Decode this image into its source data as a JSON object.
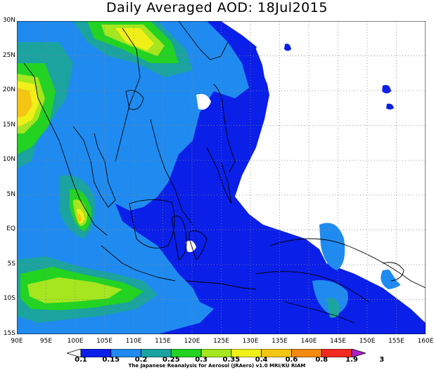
{
  "title": "Daily Averaged AOD: 18Jul2015",
  "lat_labels": [
    "30N",
    "25N",
    "20N",
    "15N",
    "10N",
    "5N",
    "EQ",
    "5S",
    "10S",
    "15S"
  ],
  "lon_labels": [
    "90E",
    "95E",
    "100E",
    "105E",
    "110E",
    "115E",
    "120E",
    "125E",
    "130E",
    "135E",
    "140E",
    "145E",
    "150E",
    "155E",
    "160E"
  ],
  "map_extent": {
    "lon_min": 90,
    "lon_max": 160,
    "lat_min": -15,
    "lat_max": 30
  },
  "grid": {
    "lon_step": 5,
    "lat_step": 5,
    "style": "dotted",
    "visible": true
  },
  "colorbar": {
    "labels": [
      "0.1",
      "0.15",
      "0.2",
      "0.25",
      "0.3",
      "0.35",
      "0.4",
      "0.6",
      "0.8",
      "1.9",
      "3"
    ],
    "colors": [
      "#ffffff",
      "#0a1fe8",
      "#1f8bf0",
      "#1ba3a0",
      "#22d322",
      "#a5e61e",
      "#f0f018",
      "#f5c513",
      "#f58a12",
      "#f02a20",
      "#b01ec8"
    ]
  },
  "credit": "The Japanese Reanalysis for Aerosol (JRAero) v1.0 MRI/KU RIAM",
  "chart_data": {
    "type": "heatmap",
    "title": "Daily Averaged AOD: 18Jul2015",
    "x_range": [
      90,
      160
    ],
    "y_range": [
      -15,
      30
    ],
    "levels": [
      0.1,
      0.15,
      0.2,
      0.25,
      0.3,
      0.35,
      0.4,
      0.6,
      0.8,
      1.9,
      3
    ],
    "value_regions": [
      {
        "lon_range": [
          90,
          140
        ],
        "lat_range": [
          -15,
          30
        ],
        "aod": 0.15
      },
      {
        "lon_range": [
          90,
          105
        ],
        "lat_range": [
          -10,
          30
        ],
        "aod": 0.2
      },
      {
        "lon_range": [
          93,
          99
        ],
        "lat_range": [
          12,
          20
        ],
        "aod": 0.35
      },
      {
        "lon_range": [
          100,
          106
        ],
        "lat_range": [
          22,
          28
        ],
        "aod": 0.3
      },
      {
        "lon_range": [
          100,
          104
        ],
        "lat_range": [
          -1,
          5
        ],
        "aod": 0.35
      },
      {
        "lon_range": [
          92,
          108
        ],
        "lat_range": [
          -10,
          -5
        ],
        "aod": 0.3
      },
      {
        "lon_range": [
          137,
          143
        ],
        "lat_range": [
          -4,
          1
        ],
        "aod": 0.2
      },
      {
        "lon_range": [
          148,
          155
        ],
        "lat_range": [
          -8,
          -5
        ],
        "aod": 0.2
      },
      {
        "lon_range": [
          138,
          144
        ],
        "lat_range": [
          -12,
          -8
        ],
        "aod": 0.2
      }
    ]
  }
}
